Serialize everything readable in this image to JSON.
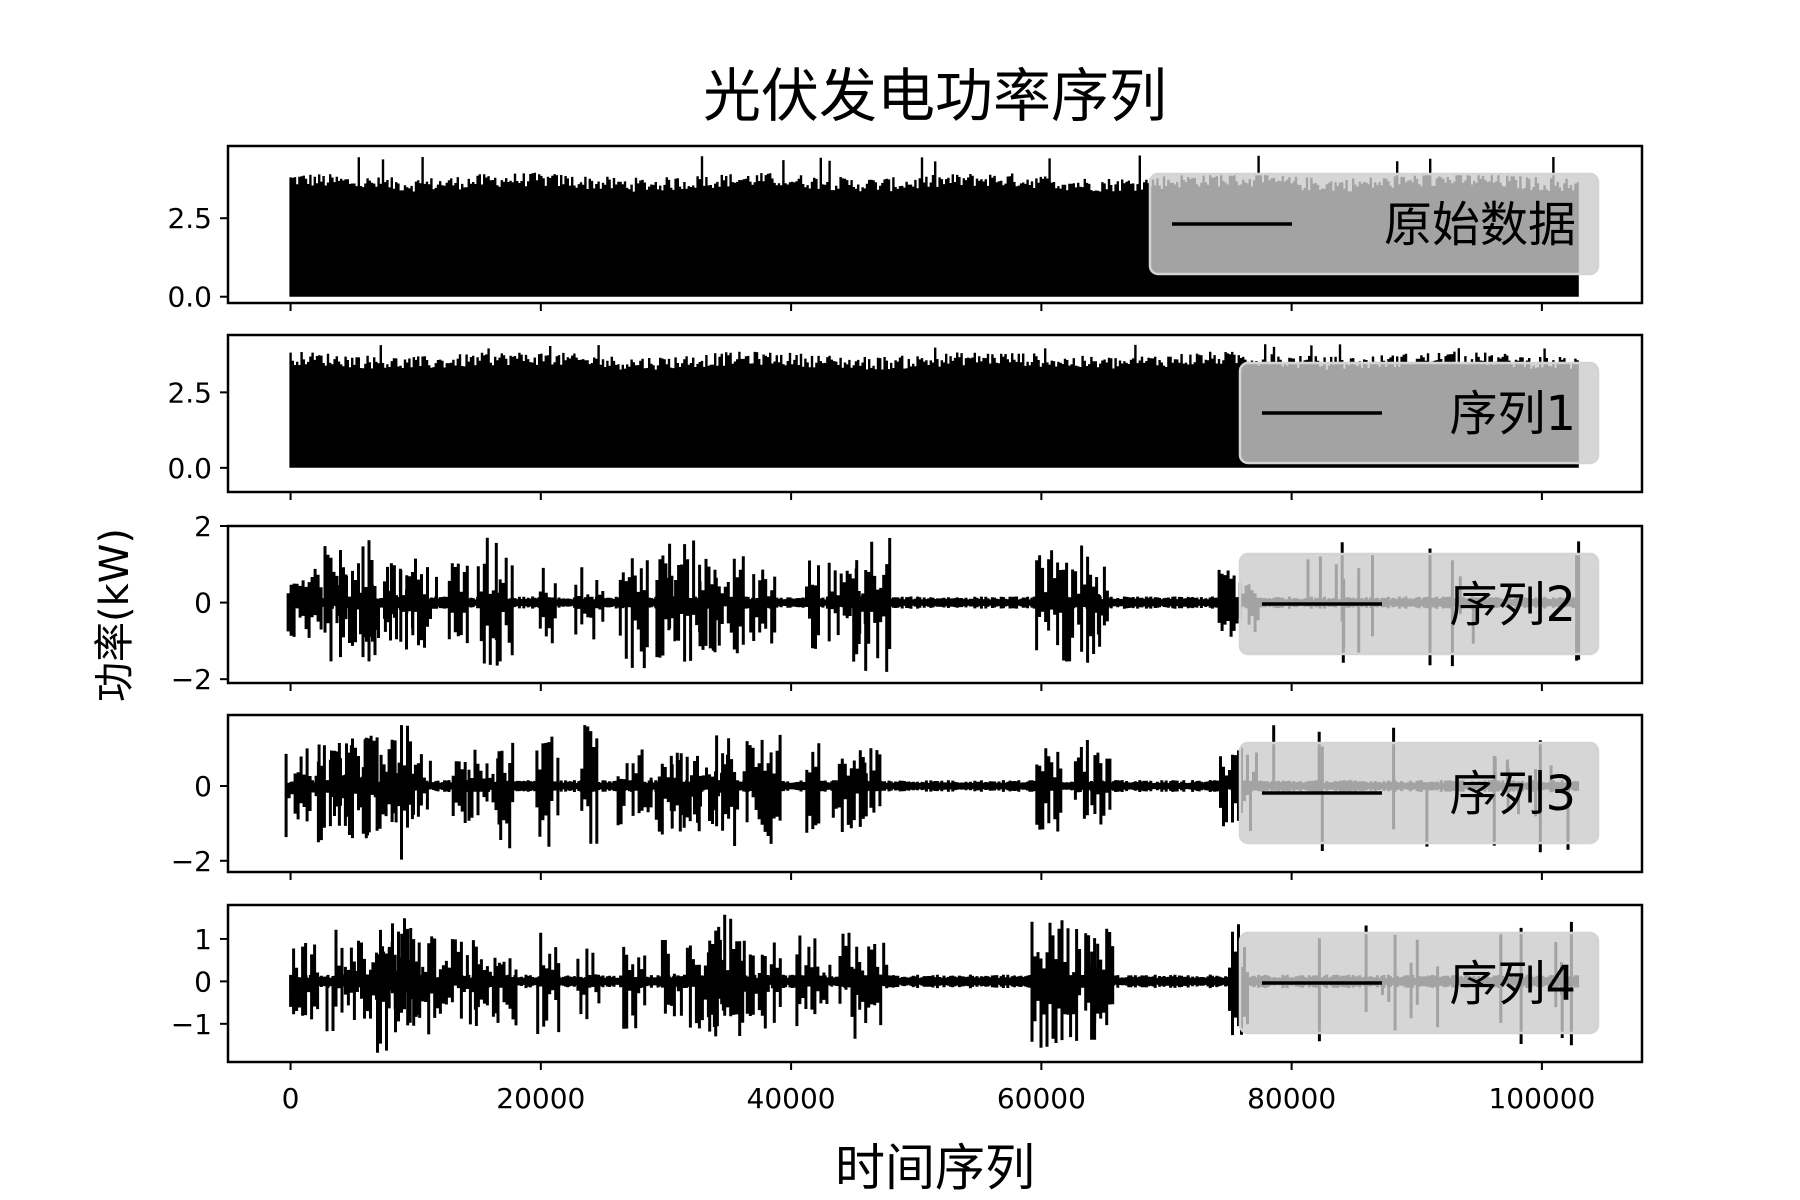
{
  "chart_data": {
    "type": "line",
    "title": "光伏发电功率序列",
    "xlabel": "时间序列",
    "ylabel": "功率(kW)",
    "xlim": [
      -5000,
      108000
    ],
    "x_ticks": [
      0,
      20000,
      40000,
      60000,
      80000,
      100000
    ],
    "x_tick_labels": [
      "0",
      "20000",
      "40000",
      "60000",
      "80000",
      "100000"
    ],
    "x_range": [
      0,
      103000
    ],
    "line_color": "#000000",
    "legend_location": "right",
    "series": [
      {
        "name": "原始数据",
        "ylim": [
          -0.2,
          4.8
        ],
        "y_ticks": [
          0.0,
          2.5
        ],
        "y_tick_labels": [
          "0.0",
          "2.5"
        ],
        "baseline": 0.0,
        "peak_level": 3.8,
        "max_value": 4.5,
        "min_value": 0.0
      },
      {
        "name": "序列1",
        "ylim": [
          -0.8,
          4.4
        ],
        "y_ticks": [
          0.0,
          2.5
        ],
        "y_tick_labels": [
          "0.0",
          "2.5"
        ],
        "baseline": 0.0,
        "peak_level": 3.7,
        "max_value": 4.1,
        "min_value": -0.5
      },
      {
        "name": "序列2",
        "ylim": [
          -2.1,
          2.0
        ],
        "y_ticks": [
          -2,
          0,
          2
        ],
        "y_tick_labels": [
          "−2",
          "0",
          "2"
        ],
        "baseline": 0.0,
        "peak_level": 1.7,
        "max_value": 1.8,
        "min_value": -1.9
      },
      {
        "name": "序列3",
        "ylim": [
          -2.3,
          1.9
        ],
        "y_ticks": [
          -2,
          0
        ],
        "y_tick_labels": [
          "−2",
          "0"
        ],
        "baseline": 0.0,
        "peak_level": 1.5,
        "max_value": 1.8,
        "min_value": -2.1
      },
      {
        "name": "序列4",
        "ylim": [
          -1.9,
          1.8
        ],
        "y_ticks": [
          -1,
          0,
          1
        ],
        "y_tick_labels": [
          "−1",
          "0",
          "1"
        ],
        "baseline": 0.0,
        "peak_level": 1.4,
        "max_value": 1.6,
        "min_value": -1.7
      }
    ]
  }
}
